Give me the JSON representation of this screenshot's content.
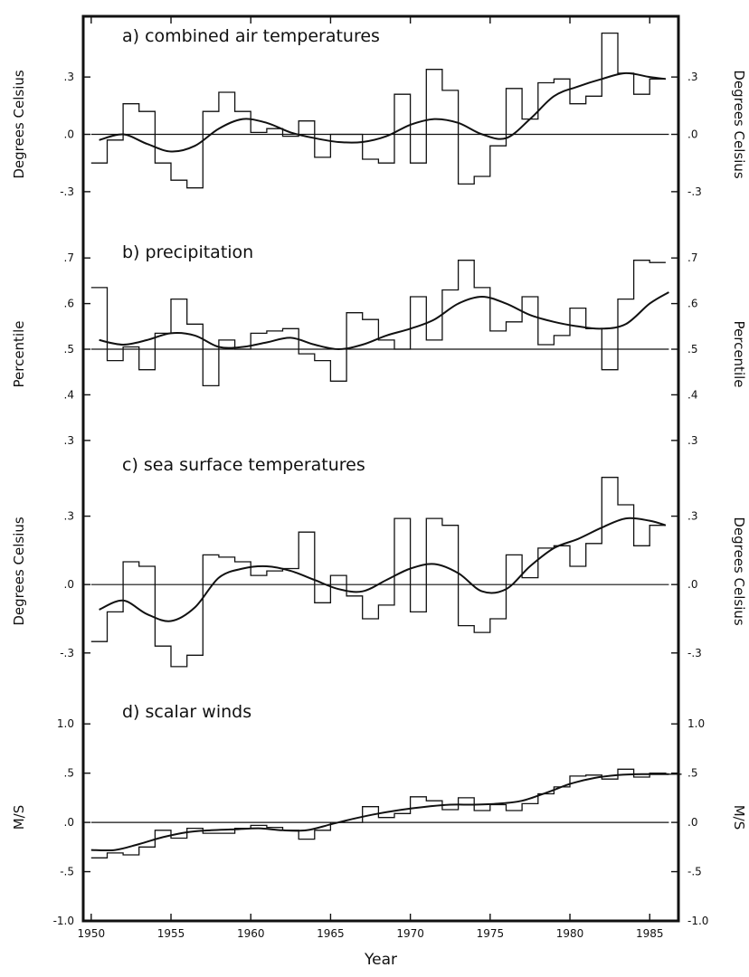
{
  "chart_data": {
    "type": "line",
    "xlabel": "Year",
    "xlim": [
      1949.5,
      1986.8
    ],
    "x_ticks": [
      "1950",
      "1955",
      "1960",
      "1965",
      "1970",
      "1975",
      "1980",
      "1985"
    ],
    "panels": [
      {
        "title": "a) combined air temperatures",
        "ylabel_left": "Degrees Celsius",
        "ylabel_right": "Degrees Celsius",
        "y_ticks": [
          ".3",
          ".0",
          "-.3"
        ],
        "ylim": [
          -0.4,
          0.58
        ],
        "baseline": 0.0,
        "annual_start_year": 1950,
        "annual": [
          -0.15,
          -0.03,
          0.16,
          0.12,
          -0.15,
          -0.24,
          -0.28,
          0.12,
          0.22,
          0.12,
          0.01,
          0.03,
          -0.01,
          0.07,
          -0.12,
          0.0,
          0.0,
          -0.13,
          -0.15,
          0.21,
          -0.15,
          0.34,
          0.23,
          -0.26,
          -0.22,
          -0.06,
          0.24,
          0.08,
          0.27,
          0.29,
          0.16,
          0.2,
          0.53,
          0.32,
          0.21,
          0.29
        ],
        "smooth_x": [
          1950.5,
          1952,
          1953.5,
          1955,
          1956.5,
          1958,
          1959.5,
          1961,
          1962.5,
          1964,
          1965.5,
          1967,
          1968.5,
          1970,
          1971.5,
          1973,
          1974.5,
          1976,
          1977.5,
          1979,
          1980.5,
          1982,
          1983.5,
          1985,
          1986
        ],
        "smooth_y": [
          -0.03,
          0.0,
          -0.05,
          -0.09,
          -0.06,
          0.03,
          0.08,
          0.06,
          0.01,
          -0.02,
          -0.04,
          -0.04,
          -0.01,
          0.05,
          0.08,
          0.06,
          0.0,
          -0.02,
          0.08,
          0.2,
          0.25,
          0.29,
          0.32,
          0.3,
          0.29
        ]
      },
      {
        "title": "b) precipitation",
        "ylabel_left": "Percentile",
        "ylabel_right": "Percentile",
        "y_ticks": [
          ".7",
          ".6",
          ".5",
          ".4",
          ".3"
        ],
        "ylim": [
          0.27,
          0.74
        ],
        "baseline": 0.5,
        "annual_start_year": 1950,
        "annual": [
          0.635,
          0.475,
          0.505,
          0.455,
          0.535,
          0.61,
          0.555,
          0.42,
          0.52,
          0.5,
          0.535,
          0.54,
          0.545,
          0.49,
          0.475,
          0.43,
          0.58,
          0.565,
          0.52,
          0.5,
          0.615,
          0.52,
          0.63,
          0.695,
          0.635,
          0.54,
          0.56,
          0.615,
          0.51,
          0.53,
          0.59,
          0.545,
          0.455,
          0.61,
          0.695,
          0.69
        ],
        "smooth_x": [
          1950.5,
          1952,
          1953.5,
          1955,
          1956.5,
          1958,
          1959.5,
          1961,
          1962.5,
          1964,
          1965.5,
          1967,
          1968.5,
          1970,
          1971.5,
          1973,
          1974.5,
          1976,
          1977.5,
          1979,
          1980.5,
          1982,
          1983.5,
          1985,
          1986.2
        ],
        "smooth_y": [
          0.52,
          0.51,
          0.52,
          0.535,
          0.53,
          0.505,
          0.505,
          0.515,
          0.525,
          0.51,
          0.5,
          0.51,
          0.53,
          0.545,
          0.565,
          0.6,
          0.615,
          0.6,
          0.575,
          0.56,
          0.55,
          0.545,
          0.555,
          0.6,
          0.625
        ]
      },
      {
        "title": "c) sea surface temperatures",
        "ylabel_left": "Degrees Celsius",
        "ylabel_right": "Degrees Celsius",
        "y_ticks": [
          ".3",
          ".0",
          "-.3"
        ],
        "ylim": [
          -0.4,
          0.58
        ],
        "baseline": 0.0,
        "annual_start_year": 1950,
        "annual": [
          -0.25,
          -0.12,
          0.1,
          0.08,
          -0.27,
          -0.36,
          -0.31,
          0.13,
          0.12,
          0.1,
          0.04,
          0.06,
          0.07,
          0.23,
          -0.08,
          0.04,
          -0.05,
          -0.15,
          -0.09,
          0.29,
          -0.12,
          0.29,
          0.26,
          -0.18,
          -0.21,
          -0.15,
          0.13,
          0.03,
          0.16,
          0.17,
          0.08,
          0.18,
          0.47,
          0.35,
          0.17,
          0.26
        ],
        "smooth_x": [
          1950.5,
          1952,
          1953.5,
          1955,
          1956.5,
          1958,
          1959.5,
          1961,
          1962.5,
          1964,
          1965.5,
          1967,
          1968.5,
          1970,
          1971.5,
          1973,
          1974.5,
          1976,
          1977.5,
          1979,
          1980.5,
          1982,
          1983.5,
          1985,
          1986
        ],
        "smooth_y": [
          -0.11,
          -0.07,
          -0.13,
          -0.16,
          -0.1,
          0.03,
          0.07,
          0.08,
          0.06,
          0.02,
          -0.02,
          -0.03,
          0.02,
          0.07,
          0.09,
          0.05,
          -0.03,
          -0.02,
          0.08,
          0.16,
          0.2,
          0.25,
          0.29,
          0.28,
          0.26
        ]
      },
      {
        "title": "d) scalar winds",
        "ylabel_left": "M/S",
        "ylabel_right": "M/S",
        "y_ticks": [
          "1.0",
          ".5",
          ".0",
          "-.5",
          "-1.0"
        ],
        "ylim": [
          -1.0,
          1.25
        ],
        "baseline": 0.0,
        "annual_start_year": 1950,
        "annual": [
          -0.36,
          -0.31,
          -0.33,
          -0.25,
          -0.08,
          -0.16,
          -0.06,
          -0.11,
          -0.11,
          -0.06,
          -0.03,
          -0.05,
          -0.08,
          -0.17,
          -0.08,
          0.0,
          0.0,
          0.16,
          0.05,
          0.09,
          0.26,
          0.22,
          0.13,
          0.25,
          0.12,
          0.18,
          0.12,
          0.19,
          0.29,
          0.36,
          0.47,
          0.48,
          0.44,
          0.54,
          0.46,
          0.5,
          0.49
        ],
        "smooth_x": [
          1950,
          1951.5,
          1953,
          1954.5,
          1956,
          1957.5,
          1959,
          1960.5,
          1962,
          1963.5,
          1965,
          1966.5,
          1968,
          1969.5,
          1971,
          1972.5,
          1974,
          1975.5,
          1977,
          1978.5,
          1980,
          1981.5,
          1983,
          1984.5,
          1986.2
        ],
        "smooth_y": [
          -0.28,
          -0.28,
          -0.22,
          -0.15,
          -0.1,
          -0.08,
          -0.07,
          -0.06,
          -0.08,
          -0.08,
          -0.02,
          0.04,
          0.09,
          0.13,
          0.16,
          0.18,
          0.18,
          0.19,
          0.22,
          0.3,
          0.39,
          0.45,
          0.48,
          0.49,
          0.49
        ]
      }
    ]
  }
}
